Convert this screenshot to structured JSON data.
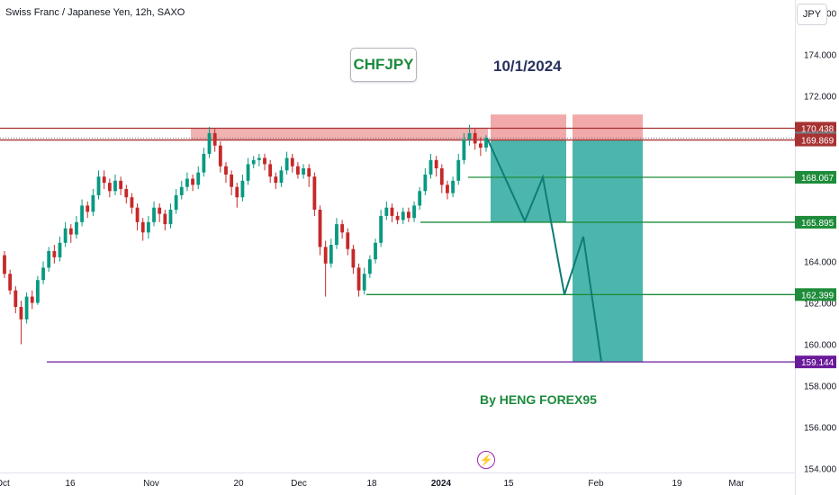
{
  "header": {
    "title": "Swiss Franc / Japanese Yen, 12h, SAXO"
  },
  "currency_button": "JPY",
  "annotations": {
    "symbol": "CHFJPY",
    "date": "10/1/2024",
    "credit": "By HENG FOREX95",
    "bolt_icon": "lightning-icon"
  },
  "colors": {
    "bull": "#089981",
    "bear": "#c62828",
    "resistance_zone": "#e57373",
    "resistance_line": "#a83232",
    "support_line": "#1e8c3a",
    "target_line": "#6a1b9a",
    "profit_zone": "#26a69a",
    "stop_zone": "#ef9a9a",
    "projection": "#0d7d75",
    "price_gray": "#787b86"
  },
  "chart_data": {
    "type": "candlestick",
    "symbol": "CHFJPY",
    "timeframe": "12h",
    "ylim": [
      153.8,
      176.2
    ],
    "y_ticks": [
      "154.000",
      "156.000",
      "158.000",
      "160.000",
      "162.000",
      "164.000",
      "166.000",
      "168.000",
      "170.000",
      "172.000",
      "174.000",
      "176.000"
    ],
    "y_ticks_values": [
      154,
      156,
      158,
      160,
      162,
      164,
      166,
      168,
      170,
      172,
      174,
      176
    ],
    "x_tick_labels": [
      "Oct",
      "16",
      "Nov",
      "20",
      "Dec",
      "18",
      "2024",
      "15",
      "Feb",
      "19",
      "Mar"
    ],
    "x_tick_bold": [
      "2024"
    ],
    "price_labels": [
      {
        "label": "170.438",
        "value": 170.438,
        "kind": "resistance"
      },
      {
        "label": "169.962",
        "value": 169.962,
        "kind": "current"
      },
      {
        "label": "169.869",
        "value": 169.869,
        "kind": "resistance"
      },
      {
        "label": "168.067",
        "value": 168.067,
        "kind": "support"
      },
      {
        "label": "165.895",
        "value": 165.895,
        "kind": "support"
      },
      {
        "label": "162.399",
        "value": 162.399,
        "kind": "support"
      },
      {
        "label": "159.144",
        "value": 159.144,
        "kind": "target"
      }
    ],
    "resistance_zone": [
      169.869,
      170.438
    ],
    "short_positions": [
      {
        "entry": 169.869,
        "stop": 171.1,
        "target": 165.895
      },
      {
        "entry": 169.869,
        "stop": 171.1,
        "target": 159.144
      }
    ],
    "projection_path": [
      169.962,
      165.95,
      168.07,
      162.4,
      165.2,
      159.144
    ],
    "candles_ohlc_approx": [
      [
        164.3,
        163.4,
        164.5,
        163.2
      ],
      [
        163.4,
        162.6,
        163.6,
        162.4
      ],
      [
        162.6,
        161.8,
        162.8,
        161.5
      ],
      [
        161.8,
        161.2,
        162.1,
        160.0
      ],
      [
        161.2,
        162.3,
        162.5,
        161.0
      ],
      [
        162.3,
        162.0,
        162.6,
        161.7
      ],
      [
        162.0,
        163.1,
        163.3,
        161.9
      ],
      [
        163.1,
        163.7,
        164.0,
        162.9
      ],
      [
        163.7,
        164.5,
        164.7,
        163.5
      ],
      [
        164.5,
        164.2,
        164.8,
        163.9
      ],
      [
        164.2,
        164.9,
        165.2,
        164.0
      ],
      [
        164.9,
        165.6,
        165.9,
        164.7
      ],
      [
        165.6,
        165.3,
        165.8,
        164.9
      ],
      [
        165.3,
        165.9,
        166.2,
        165.1
      ],
      [
        165.9,
        166.7,
        167.0,
        165.7
      ],
      [
        166.7,
        166.4,
        166.9,
        166.1
      ],
      [
        166.4,
        167.2,
        167.5,
        166.2
      ],
      [
        167.2,
        168.1,
        168.4,
        167.0
      ],
      [
        168.1,
        167.8,
        168.4,
        167.5
      ],
      [
        167.8,
        167.4,
        168.0,
        167.1
      ],
      [
        167.4,
        167.9,
        168.2,
        167.2
      ],
      [
        167.9,
        167.5,
        168.1,
        167.2
      ],
      [
        167.5,
        167.1,
        167.7,
        166.8
      ],
      [
        167.1,
        166.6,
        167.3,
        166.3
      ],
      [
        166.6,
        165.9,
        166.8,
        165.5
      ],
      [
        165.9,
        165.4,
        166.1,
        165.0
      ],
      [
        165.4,
        165.9,
        166.2,
        165.1
      ],
      [
        165.9,
        166.6,
        166.9,
        165.7
      ],
      [
        166.6,
        166.3,
        166.8,
        165.9
      ],
      [
        166.3,
        165.8,
        166.5,
        165.5
      ],
      [
        165.8,
        166.5,
        166.8,
        165.6
      ],
      [
        166.5,
        167.2,
        167.5,
        166.3
      ],
      [
        167.2,
        167.6,
        167.9,
        167.0
      ],
      [
        167.6,
        168.0,
        168.3,
        167.4
      ],
      [
        168.0,
        167.7,
        168.2,
        167.4
      ],
      [
        167.7,
        168.3,
        168.6,
        167.5
      ],
      [
        168.3,
        169.2,
        169.5,
        168.1
      ],
      [
        169.2,
        170.2,
        170.5,
        169.0
      ],
      [
        170.2,
        169.6,
        170.4,
        169.3
      ],
      [
        169.6,
        168.6,
        169.8,
        168.3
      ],
      [
        168.6,
        168.2,
        168.8,
        167.8
      ],
      [
        168.2,
        167.6,
        168.4,
        167.2
      ],
      [
        167.6,
        167.1,
        167.8,
        166.6
      ],
      [
        167.1,
        167.9,
        168.2,
        166.9
      ],
      [
        167.9,
        168.7,
        169.0,
        167.7
      ],
      [
        168.7,
        168.9,
        169.1,
        168.5
      ],
      [
        168.9,
        169.0,
        169.2,
        168.6
      ],
      [
        169.0,
        168.7,
        169.2,
        168.4
      ],
      [
        168.7,
        168.1,
        168.9,
        167.8
      ],
      [
        168.1,
        167.8,
        168.3,
        167.5
      ],
      [
        167.8,
        168.4,
        168.6,
        167.6
      ],
      [
        168.4,
        169.0,
        169.3,
        168.2
      ],
      [
        169.0,
        168.6,
        169.2,
        168.3
      ],
      [
        168.6,
        168.2,
        168.8,
        168.0
      ],
      [
        168.2,
        168.5,
        168.7,
        168.0
      ],
      [
        168.5,
        168.1,
        168.7,
        167.6
      ],
      [
        168.1,
        166.5,
        168.3,
        166.2
      ],
      [
        166.5,
        164.7,
        166.7,
        164.3
      ],
      [
        164.7,
        163.9,
        165.0,
        162.3
      ],
      [
        163.9,
        164.8,
        165.1,
        163.7
      ],
      [
        164.8,
        165.8,
        166.1,
        164.6
      ],
      [
        165.8,
        165.4,
        166.0,
        165.1
      ],
      [
        165.4,
        164.6,
        165.6,
        164.3
      ],
      [
        164.6,
        163.7,
        164.8,
        163.4
      ],
      [
        163.7,
        162.6,
        163.9,
        162.3
      ],
      [
        162.6,
        163.4,
        163.7,
        162.4
      ],
      [
        163.4,
        164.1,
        164.3,
        163.2
      ],
      [
        164.1,
        164.9,
        165.1,
        163.9
      ],
      [
        164.9,
        166.2,
        166.5,
        164.7
      ],
      [
        166.2,
        166.6,
        166.9,
        166.0
      ],
      [
        166.6,
        166.2,
        166.8,
        165.9
      ],
      [
        166.2,
        166.0,
        166.4,
        165.8
      ],
      [
        166.0,
        166.4,
        166.6,
        165.8
      ],
      [
        166.4,
        166.1,
        166.6,
        165.9
      ],
      [
        166.1,
        166.7,
        166.9,
        165.9
      ],
      [
        166.7,
        167.4,
        167.6,
        166.5
      ],
      [
        167.4,
        168.2,
        168.5,
        167.2
      ],
      [
        168.2,
        168.9,
        169.2,
        168.0
      ],
      [
        168.9,
        168.5,
        169.1,
        168.1
      ],
      [
        168.5,
        167.7,
        168.7,
        167.3
      ],
      [
        167.7,
        167.3,
        167.9,
        167.0
      ],
      [
        167.3,
        167.9,
        168.1,
        167.1
      ],
      [
        167.9,
        168.9,
        169.2,
        167.7
      ],
      [
        168.9,
        169.9,
        170.2,
        168.7
      ],
      [
        169.9,
        170.2,
        170.6,
        169.6
      ],
      [
        170.2,
        169.7,
        170.4,
        169.4
      ],
      [
        169.7,
        169.5,
        170.0,
        169.1
      ],
      [
        169.5,
        169.962,
        170.1,
        169.3
      ]
    ]
  }
}
